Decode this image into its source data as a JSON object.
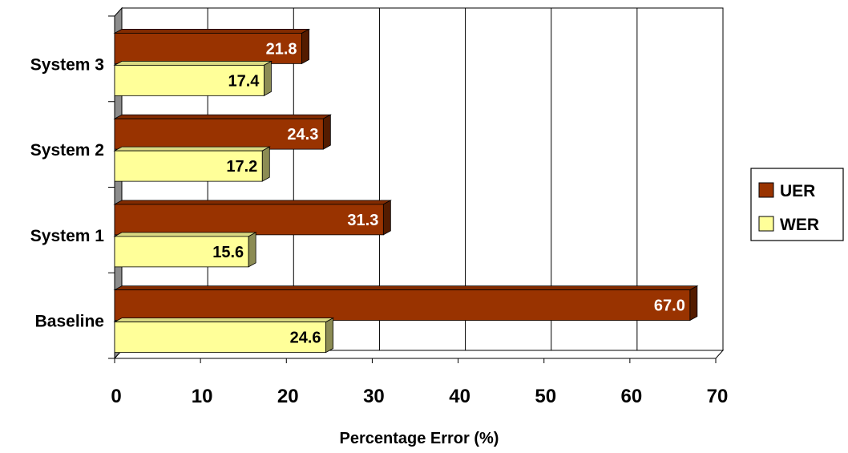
{
  "chart_data": {
    "type": "bar",
    "orientation": "horizontal",
    "categories": [
      "Baseline",
      "System 1",
      "System 2",
      "System 3"
    ],
    "series": [
      {
        "name": "UER",
        "color": "#993300",
        "label_color": "#ffffff",
        "values": [
          67.0,
          31.3,
          24.3,
          21.8
        ],
        "labels": [
          "67.0",
          "31.3",
          "24.3",
          "21.8"
        ]
      },
      {
        "name": "WER",
        "color": "#ffff99",
        "label_color": "#000000",
        "values": [
          24.6,
          15.6,
          17.2,
          17.4
        ],
        "labels": [
          "24.6",
          "15.6",
          "17.2",
          "17.4"
        ]
      }
    ],
    "xlabel": "Percentage Error (%)",
    "ylabel": "",
    "xlim": [
      0,
      70
    ],
    "ticks": [
      "0",
      "10",
      "20",
      "30",
      "40",
      "50",
      "60",
      "70"
    ],
    "grid": true,
    "legend_position": "right",
    "style": "3d"
  }
}
